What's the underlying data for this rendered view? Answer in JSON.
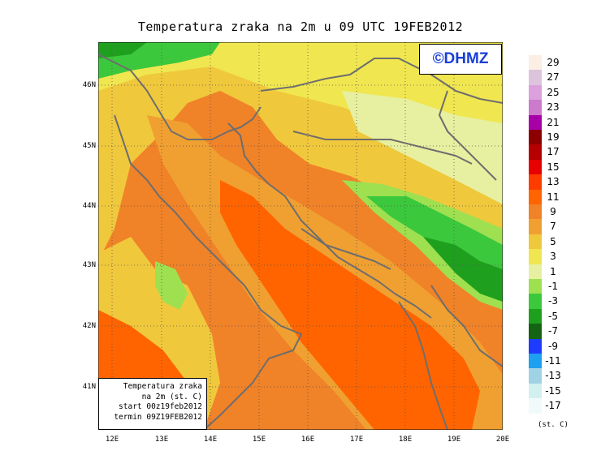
{
  "title": "Temperatura zraka na 2m u 09 UTC 19FEB2012",
  "credit": "©DHMZ",
  "info": {
    "line1": "Temperatura zraka",
    "line2": "na 2m (st. C)",
    "line3": "start 00z19feb2012",
    "line4": "termin 09Z19FEB2012"
  },
  "lat_labels": [
    "46N",
    "45N",
    "44N",
    "43N",
    "42N",
    "41N"
  ],
  "lon_labels": [
    "12E",
    "13E",
    "14E",
    "15E",
    "16E",
    "17E",
    "18E",
    "19E",
    "20E"
  ],
  "colorbar": {
    "unit": "(st. C)",
    "labels": [
      "29",
      "27",
      "25",
      "23",
      "21",
      "19",
      "17",
      "15",
      "13",
      "11",
      "9",
      "7",
      "5",
      "3",
      "1",
      "-1",
      "-3",
      "-5",
      "-7",
      "-9",
      "-11",
      "-13",
      "-15",
      "-17"
    ],
    "colors": [
      "#fbeee4",
      "#dcc4dc",
      "#dca0dc",
      "#cc7acc",
      "#a800a8",
      "#8c0000",
      "#b40000",
      "#e60000",
      "#ff3c00",
      "#ff6400",
      "#f08228",
      "#f0a030",
      "#f0c83c",
      "#f0e650",
      "#e6f0a0",
      "#9ee050",
      "#3cc83c",
      "#1ea01e",
      "#146414",
      "#1e3cff",
      "#1ea0f0",
      "#a0d2e6",
      "#d2f0f0",
      "#f0fafa"
    ]
  }
}
